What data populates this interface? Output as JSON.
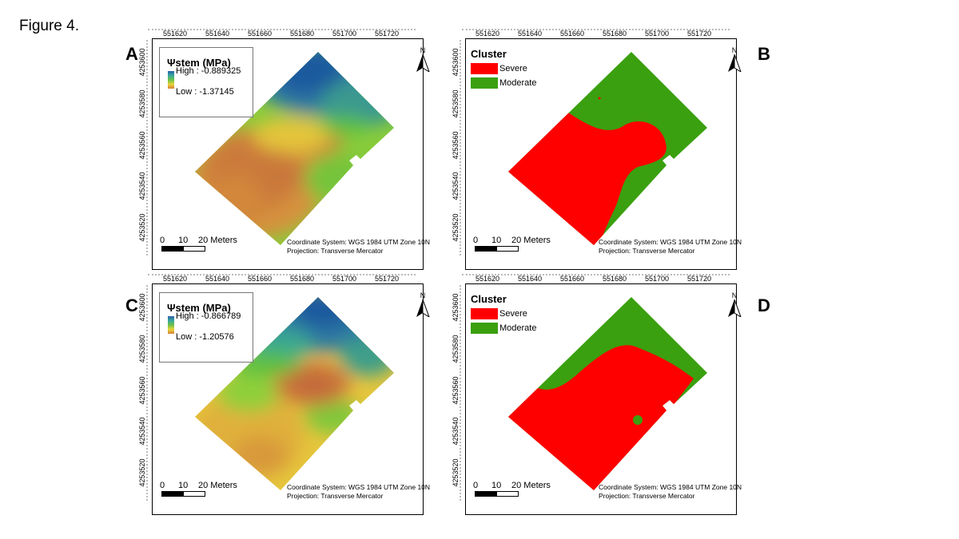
{
  "figure_label": "Figure 4.",
  "x_ticks": [
    "551620",
    "551640",
    "551660",
    "551680",
    "551700",
    "551720"
  ],
  "y_ticks": [
    "4253600",
    "4253580",
    "4253560",
    "4253540",
    "4253520"
  ],
  "north_label": "N",
  "scale": {
    "zero": "0",
    "ten": "10",
    "twenty": "20 Meters"
  },
  "coord_system": "Coordinate System: WGS 1984 UTM Zone 10N",
  "projection": "Projection: Transverse Mercator",
  "colors": {
    "severe": "#ff0000",
    "moderate": "#3aa00f",
    "high": "#1f5fa6",
    "low": "#d0703a"
  },
  "panels": {
    "A": {
      "letter": "A",
      "legend_title": "Ψstem (MPa)",
      "high": "High : -0.889325",
      "low": "Low : -1.37145"
    },
    "B": {
      "letter": "B",
      "legend_title": "Cluster",
      "severe": "Severe",
      "moderate": "Moderate"
    },
    "C": {
      "letter": "C",
      "legend_title": "Ψstem (MPa)",
      "high": "High : -0.866789",
      "low": "Low : -1.20576"
    },
    "D": {
      "letter": "D",
      "legend_title": "Cluster",
      "severe": "Severe",
      "moderate": "Moderate"
    }
  }
}
